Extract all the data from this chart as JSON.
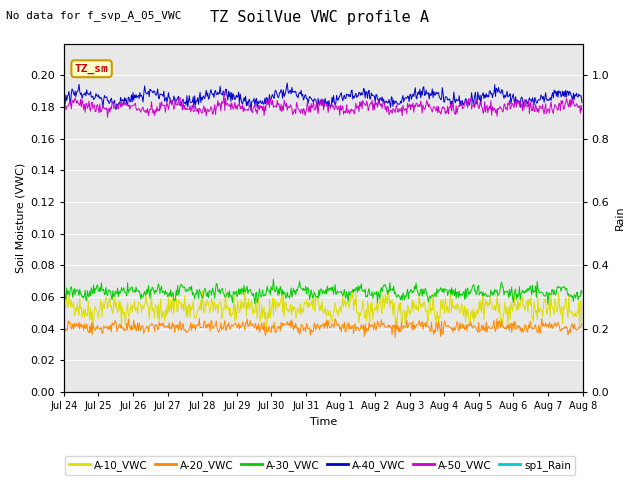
{
  "title": "TZ SoilVue VWC profile A",
  "subtitle": "No data for f_svp_A_05_VWC",
  "xlabel": "Time",
  "ylabel_left": "Soil Moisture (VWC)",
  "ylabel_right": "Rain",
  "annotation": "TZ_sm",
  "annotation_bg": "#ffffcc",
  "annotation_border": "#cc9900",
  "annotation_text_color": "#cc0000",
  "ylim_left": [
    0.0,
    0.22
  ],
  "ylim_right": [
    0.0,
    1.1
  ],
  "yticks_left": [
    0.0,
    0.02,
    0.04,
    0.06,
    0.08,
    0.1,
    0.12,
    0.14,
    0.16,
    0.18,
    0.2
  ],
  "yticks_right": [
    0.0,
    0.2,
    0.4,
    0.6,
    0.8,
    1.0
  ],
  "bg_color": "#e8e8e8",
  "series": {
    "A_10": {
      "color": "#dddd00",
      "label": "A-10_VWC",
      "mean": 0.053,
      "amp": 0.004,
      "noise": 0.004
    },
    "A_20": {
      "color": "#ff8800",
      "label": "A-20_VWC",
      "mean": 0.041,
      "amp": 0.001,
      "noise": 0.002
    },
    "A_30": {
      "color": "#00cc00",
      "label": "A-30_VWC",
      "mean": 0.063,
      "amp": 0.002,
      "noise": 0.002
    },
    "A_40": {
      "color": "#0000cc",
      "label": "A-40_VWC",
      "mean": 0.185,
      "amp": 0.003,
      "noise": 0.002
    },
    "A_50": {
      "color": "#cc00cc",
      "label": "A-50_VWC",
      "mean": 0.18,
      "amp": 0.002,
      "noise": 0.002
    },
    "Rain": {
      "color": "#00cccc",
      "label": "sp1_Rain",
      "mean": 0.0,
      "amp": 0.0,
      "noise": 0.0
    }
  },
  "n_points": 672,
  "x_tick_labels": [
    "Jul 24",
    "Jul 25",
    "Jul 26",
    "Jul 27",
    "Jul 28",
    "Jul 29",
    "Jul 30",
    "Jul 31",
    "Aug 1",
    "Aug 2",
    "Aug 3",
    "Aug 4",
    "Aug 5",
    "Aug 6",
    "Aug 7",
    "Aug 8"
  ],
  "title_fontsize": 11,
  "subtitle_fontsize": 8,
  "axis_fontsize": 8,
  "tick_fontsize": 8
}
